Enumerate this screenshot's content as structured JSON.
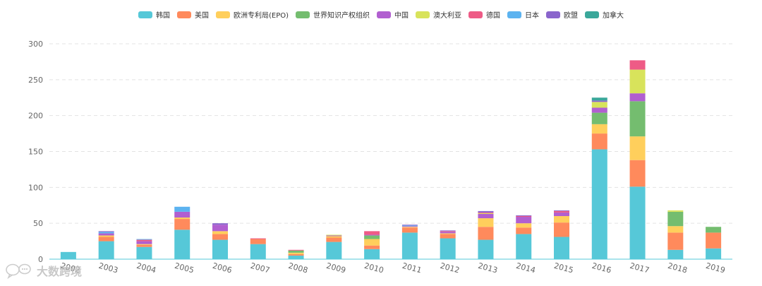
{
  "chart_data": {
    "type": "bar",
    "stacked": true,
    "categories": [
      "2002",
      "2003",
      "2004",
      "2005",
      "2006",
      "2007",
      "2008",
      "2009",
      "2010",
      "2011",
      "2012",
      "2013",
      "2014",
      "2015",
      "2016",
      "2017",
      "2018",
      "2019"
    ],
    "y_ticks": [
      "0",
      "50",
      "100",
      "150",
      "200",
      "250",
      "300"
    ],
    "ylim": [
      0,
      300
    ],
    "grid": "horizontal dashed",
    "legend_position": "top",
    "series": [
      {
        "name": "韩国",
        "color": "#56c8d8",
        "values": [
          10,
          25,
          17,
          41,
          27,
          21,
          5,
          24,
          14,
          37,
          29,
          27,
          35,
          31,
          153,
          101,
          13,
          15
        ]
      },
      {
        "name": "美国",
        "color": "#ff8a5c",
        "values": [
          0,
          6,
          3,
          15,
          8,
          7,
          2,
          6,
          5,
          7,
          6,
          18,
          9,
          20,
          22,
          37,
          24,
          22
        ]
      },
      {
        "name": "欧洲专利局(EPO)",
        "color": "#ffcf5c",
        "values": [
          0,
          2,
          1,
          2,
          4,
          0,
          2,
          2,
          9,
          1,
          1,
          12,
          6,
          9,
          13,
          33,
          9,
          0
        ]
      },
      {
        "name": "世界知识产权组织",
        "color": "#74bd6f",
        "values": [
          0,
          0,
          0,
          0,
          0,
          0,
          3,
          0,
          5,
          0,
          0,
          0,
          0,
          0,
          16,
          49,
          20,
          8
        ]
      },
      {
        "name": "中国",
        "color": "#b15fd0",
        "values": [
          0,
          3,
          4,
          8,
          9,
          0,
          0,
          1,
          1,
          1,
          2,
          6,
          9,
          5,
          7,
          11,
          0,
          0
        ]
      },
      {
        "name": "澳大利亚",
        "color": "#d8e35b",
        "values": [
          0,
          0,
          0,
          0,
          0,
          0,
          0,
          1,
          0,
          0,
          0,
          1,
          0,
          0,
          8,
          33,
          2,
          0
        ]
      },
      {
        "name": "德国",
        "color": "#ee5b86",
        "values": [
          0,
          0,
          2,
          0,
          0,
          1,
          1,
          0,
          5,
          0,
          1,
          1,
          1,
          2,
          0,
          13,
          0,
          0
        ]
      },
      {
        "name": "日本",
        "color": "#5cb3f0",
        "values": [
          0,
          2,
          1,
          7,
          0,
          0,
          0,
          0,
          0,
          1,
          0,
          0,
          0,
          0,
          0,
          0,
          0,
          0
        ]
      },
      {
        "name": "欧盟",
        "color": "#8a65cc",
        "values": [
          0,
          1,
          0,
          0,
          2,
          0,
          0,
          0,
          0,
          1,
          1,
          2,
          1,
          1,
          2,
          0,
          0,
          0
        ]
      },
      {
        "name": "加拿大",
        "color": "#3aa79a",
        "values": [
          0,
          0,
          0,
          0,
          0,
          0,
          0,
          0,
          0,
          0,
          0,
          0,
          0,
          0,
          4,
          0,
          0,
          0
        ]
      }
    ]
  },
  "watermark": {
    "text": "大数跨境",
    "icon": "chat-bubble-logo"
  }
}
